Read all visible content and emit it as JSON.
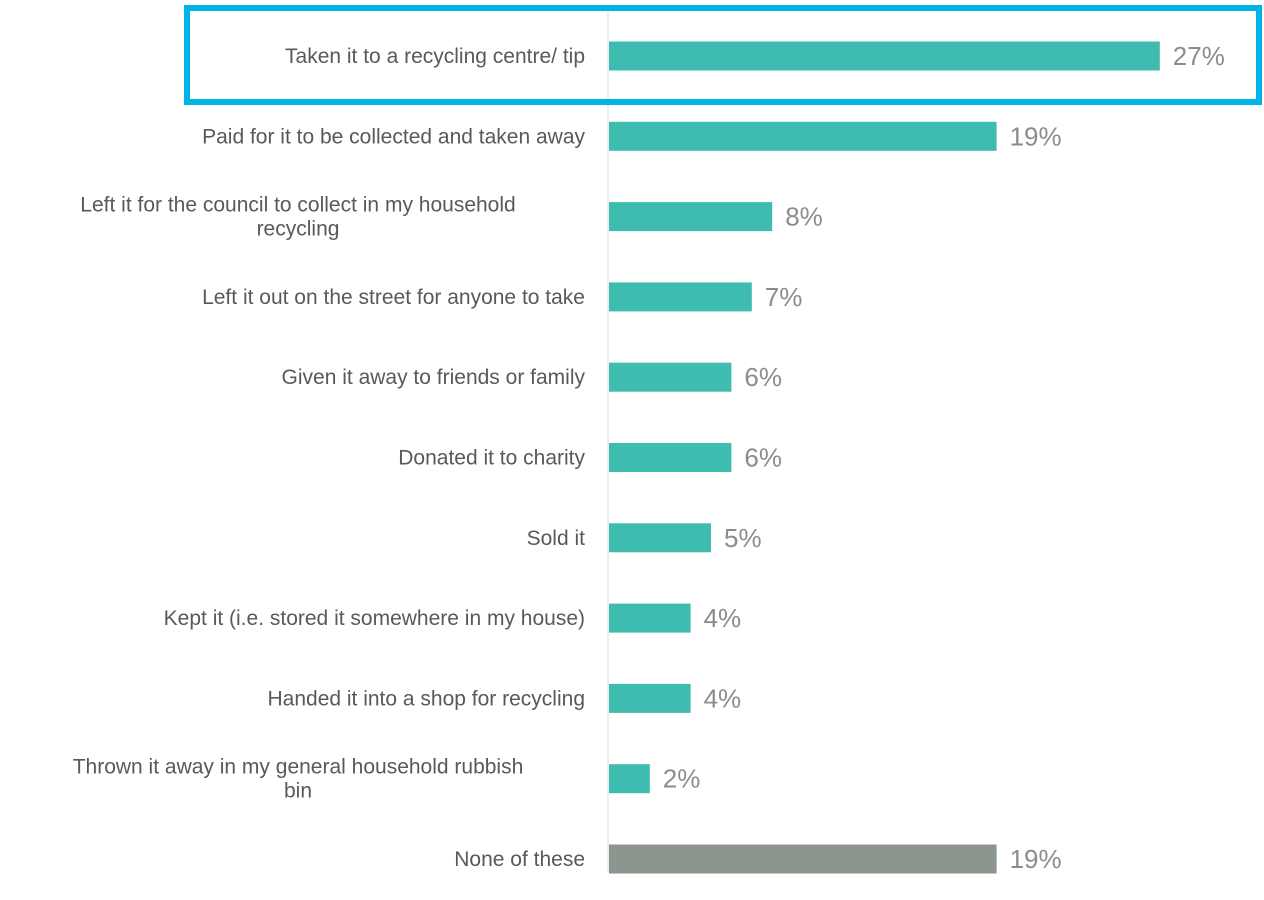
{
  "chart_data": {
    "type": "bar",
    "orientation": "horizontal",
    "categories": [
      "Taken it to a recycling centre/ tip",
      "Paid for it to be collected and taken away",
      "Left it for the council to collect in my household recycling",
      "Left it out on the street for anyone to take",
      "Given it away to friends or family",
      "Donated it to charity",
      "Sold it",
      "Kept it (i.e. stored it somewhere in my house)",
      "Handed it into a shop for recycling",
      "Thrown it away in my general household rubbish bin",
      "None of these"
    ],
    "category_lines": [
      [
        "Taken it to a recycling centre/ tip"
      ],
      [
        "Paid for it to be collected and taken away"
      ],
      [
        "Left it for the council to collect in my household",
        "recycling"
      ],
      [
        "Left it out on the street for anyone to take"
      ],
      [
        "Given it away to friends or family"
      ],
      [
        "Donated it to charity"
      ],
      [
        "Sold it"
      ],
      [
        "Kept it (i.e. stored it somewhere in my house)"
      ],
      [
        "Handed it into a shop for recycling"
      ],
      [
        "Thrown it away in my general household rubbish",
        "bin"
      ],
      [
        "None of these"
      ]
    ],
    "values": [
      27,
      19,
      8,
      7,
      6,
      6,
      5,
      4,
      4,
      2,
      19
    ],
    "value_labels": [
      "27%",
      "19%",
      "8%",
      "7%",
      "6%",
      "6%",
      "5%",
      "4%",
      "4%",
      "2%",
      "19%"
    ],
    "unit": "%",
    "xlim": [
      0,
      30
    ],
    "title": "",
    "xlabel": "",
    "ylabel": "",
    "legend": "none",
    "grid": false,
    "bar_colors": [
      "#3fbcb0",
      "#3fbcb0",
      "#3fbcb0",
      "#3fbcb0",
      "#3fbcb0",
      "#3fbcb0",
      "#3fbcb0",
      "#3fbcb0",
      "#3fbcb0",
      "#3fbcb0",
      "#8d958f"
    ],
    "highlight_index": 0,
    "highlight_color": "#00b4e8"
  }
}
